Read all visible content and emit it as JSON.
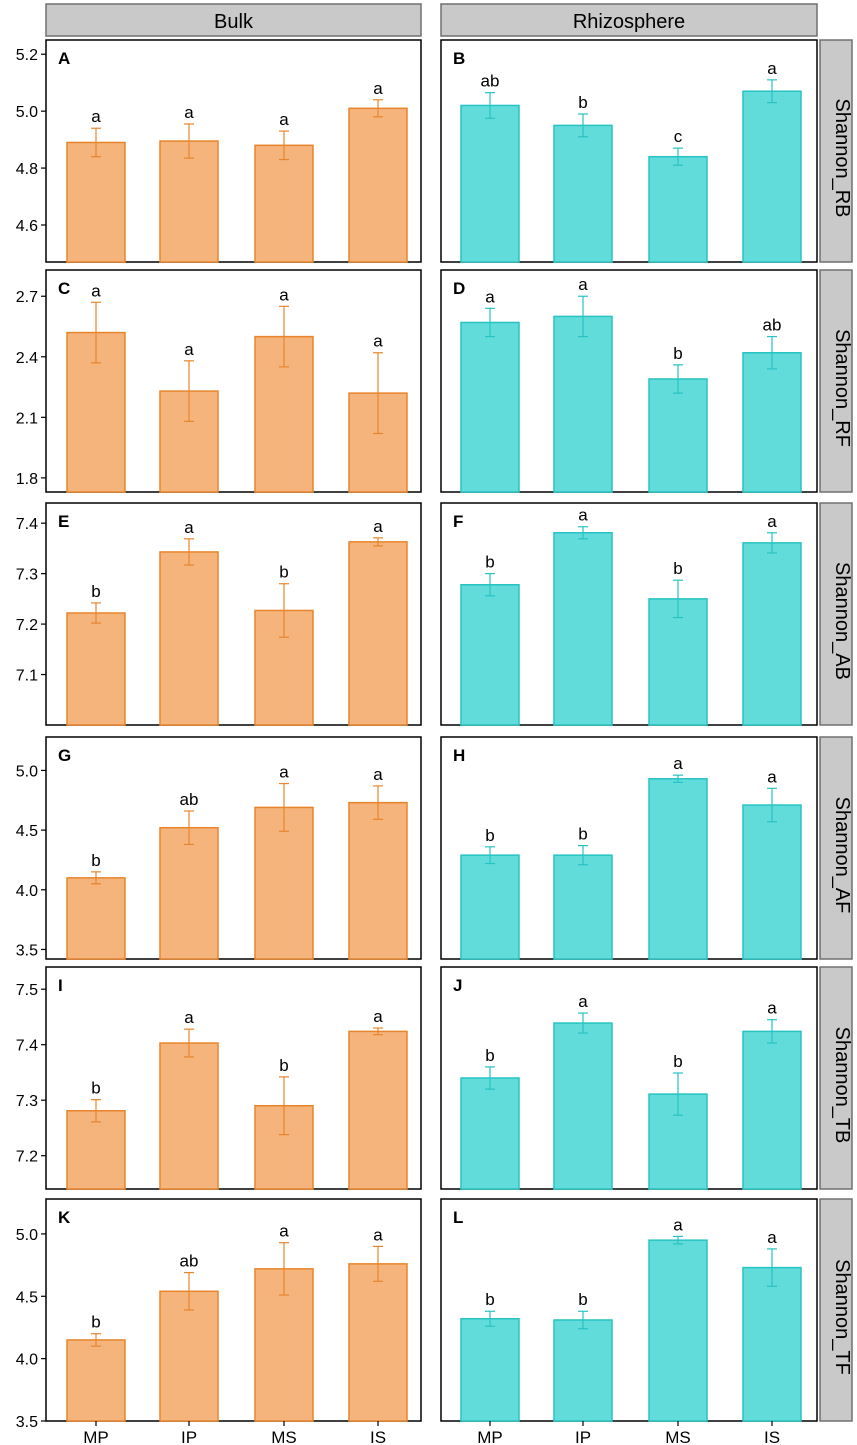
{
  "figure": {
    "columns": [
      "Bulk",
      "Rhizosphere"
    ],
    "rows": [
      "Shannon_RB",
      "Shannon_RF",
      "Shannon_AB",
      "Shannon_AF",
      "Shannon_TB",
      "Shannon_TF"
    ],
    "categories": [
      "MP",
      "IP",
      "MS",
      "IS"
    ],
    "colors": {
      "bulk_fill": "#F4B47C",
      "bulk_stroke": "#E8852C",
      "rhizo_fill": "#62DCDA",
      "rhizo_stroke": "#27C3C3",
      "strip_fill": "#C9C9C9",
      "strip_stroke": "#707070"
    }
  },
  "chart_data": [
    {
      "panel": "A",
      "type": "bar",
      "column": "Bulk",
      "row": "Shannon_RB",
      "categories": [
        "MP",
        "IP",
        "MS",
        "IS"
      ],
      "values": [
        4.89,
        4.895,
        4.88,
        5.01
      ],
      "errors": [
        0.05,
        0.06,
        0.05,
        0.03
      ],
      "significance": [
        "a",
        "a",
        "a",
        "a"
      ],
      "ylim": [
        4.47,
        5.25
      ],
      "yticks": [
        "4.6",
        "4.8",
        "5.0",
        "5.2"
      ]
    },
    {
      "panel": "B",
      "type": "bar",
      "column": "Rhizosphere",
      "row": "Shannon_RB",
      "categories": [
        "MP",
        "IP",
        "MS",
        "IS"
      ],
      "values": [
        5.02,
        4.95,
        4.84,
        5.07
      ],
      "errors": [
        0.045,
        0.04,
        0.03,
        0.04
      ],
      "significance": [
        "ab",
        "b",
        "c",
        "a"
      ],
      "ylim": [
        4.47,
        5.25
      ],
      "yticks": [
        "4.6",
        "4.8",
        "5.0",
        "5.2"
      ]
    },
    {
      "panel": "C",
      "type": "bar",
      "column": "Bulk",
      "row": "Shannon_RF",
      "categories": [
        "MP",
        "IP",
        "MS",
        "IS"
      ],
      "values": [
        2.52,
        2.23,
        2.5,
        2.22
      ],
      "errors": [
        0.15,
        0.15,
        0.15,
        0.2
      ],
      "significance": [
        "a",
        "a",
        "a",
        "a"
      ],
      "ylim": [
        1.73,
        2.83
      ],
      "yticks": [
        "1.8",
        "2.1",
        "2.4",
        "2.7"
      ]
    },
    {
      "panel": "D",
      "type": "bar",
      "column": "Rhizosphere",
      "row": "Shannon_RF",
      "categories": [
        "MP",
        "IP",
        "MS",
        "IS"
      ],
      "values": [
        2.57,
        2.6,
        2.29,
        2.42
      ],
      "errors": [
        0.07,
        0.1,
        0.07,
        0.08
      ],
      "significance": [
        "a",
        "a",
        "b",
        "ab"
      ],
      "ylim": [
        1.73,
        2.83
      ],
      "yticks": [
        "1.8",
        "2.1",
        "2.4",
        "2.7"
      ]
    },
    {
      "panel": "E",
      "type": "bar",
      "column": "Bulk",
      "row": "Shannon_AB",
      "categories": [
        "MP",
        "IP",
        "MS",
        "IS"
      ],
      "values": [
        7.222,
        7.343,
        7.227,
        7.363
      ],
      "errors": [
        0.02,
        0.026,
        0.053,
        0.008
      ],
      "significance": [
        "b",
        "a",
        "b",
        "a"
      ],
      "ylim": [
        7.0,
        7.44
      ],
      "yticks": [
        "7.1",
        "7.2",
        "7.3",
        "7.4"
      ]
    },
    {
      "panel": "F",
      "type": "bar",
      "column": "Rhizosphere",
      "row": "Shannon_AB",
      "categories": [
        "MP",
        "IP",
        "MS",
        "IS"
      ],
      "values": [
        7.278,
        7.381,
        7.25,
        7.361
      ],
      "errors": [
        0.022,
        0.012,
        0.037,
        0.02
      ],
      "significance": [
        "b",
        "a",
        "b",
        "a"
      ],
      "ylim": [
        7.0,
        7.44
      ],
      "yticks": [
        "7.1",
        "7.2",
        "7.3",
        "7.4"
      ]
    },
    {
      "panel": "G",
      "type": "bar",
      "column": "Bulk",
      "row": "Shannon_AF",
      "categories": [
        "MP",
        "IP",
        "MS",
        "IS"
      ],
      "values": [
        4.1,
        4.52,
        4.69,
        4.73
      ],
      "errors": [
        0.05,
        0.14,
        0.2,
        0.14
      ],
      "significance": [
        "b",
        "ab",
        "a",
        "a"
      ],
      "ylim": [
        3.42,
        5.28
      ],
      "yticks": [
        "3.5",
        "4.0",
        "4.5",
        "5.0"
      ]
    },
    {
      "panel": "H",
      "type": "bar",
      "column": "Rhizosphere",
      "row": "Shannon_AF",
      "categories": [
        "MP",
        "IP",
        "MS",
        "IS"
      ],
      "values": [
        4.29,
        4.29,
        4.93,
        4.71
      ],
      "errors": [
        0.07,
        0.08,
        0.03,
        0.14
      ],
      "significance": [
        "b",
        "b",
        "a",
        "a"
      ],
      "ylim": [
        3.42,
        5.28
      ],
      "yticks": [
        "3.5",
        "4.0",
        "4.5",
        "5.0"
      ]
    },
    {
      "panel": "I",
      "type": "bar",
      "column": "Bulk",
      "row": "Shannon_TB",
      "categories": [
        "MP",
        "IP",
        "MS",
        "IS"
      ],
      "values": [
        7.281,
        7.403,
        7.29,
        7.424
      ],
      "errors": [
        0.02,
        0.025,
        0.052,
        0.006
      ],
      "significance": [
        "b",
        "a",
        "b",
        "a"
      ],
      "ylim": [
        7.14,
        7.54
      ],
      "yticks": [
        "7.2",
        "7.3",
        "7.4",
        "7.5"
      ]
    },
    {
      "panel": "J",
      "type": "bar",
      "column": "Rhizosphere",
      "row": "Shannon_TB",
      "categories": [
        "MP",
        "IP",
        "MS",
        "IS"
      ],
      "values": [
        7.34,
        7.439,
        7.311,
        7.424
      ],
      "errors": [
        0.02,
        0.018,
        0.038,
        0.021
      ],
      "significance": [
        "b",
        "a",
        "b",
        "a"
      ],
      "ylim": [
        7.14,
        7.54
      ],
      "yticks": [
        "7.2",
        "7.3",
        "7.4",
        "7.5"
      ]
    },
    {
      "panel": "K",
      "type": "bar",
      "column": "Bulk",
      "row": "Shannon_TF",
      "categories": [
        "MP",
        "IP",
        "MS",
        "IS"
      ],
      "values": [
        4.15,
        4.54,
        4.72,
        4.76
      ],
      "errors": [
        0.05,
        0.15,
        0.21,
        0.14
      ],
      "significance": [
        "b",
        "ab",
        "a",
        "a"
      ],
      "ylim": [
        3.5,
        5.28
      ],
      "yticks": [
        "3.5",
        "4.0",
        "4.5",
        "5.0"
      ]
    },
    {
      "panel": "L",
      "type": "bar",
      "column": "Rhizosphere",
      "row": "Shannon_TF",
      "categories": [
        "MP",
        "IP",
        "MS",
        "IS"
      ],
      "values": [
        4.32,
        4.31,
        4.95,
        4.73
      ],
      "errors": [
        0.06,
        0.07,
        0.03,
        0.15
      ],
      "significance": [
        "b",
        "b",
        "a",
        "a"
      ],
      "ylim": [
        3.5,
        5.28
      ],
      "yticks": [
        "3.5",
        "4.0",
        "4.5",
        "5.0"
      ]
    }
  ]
}
